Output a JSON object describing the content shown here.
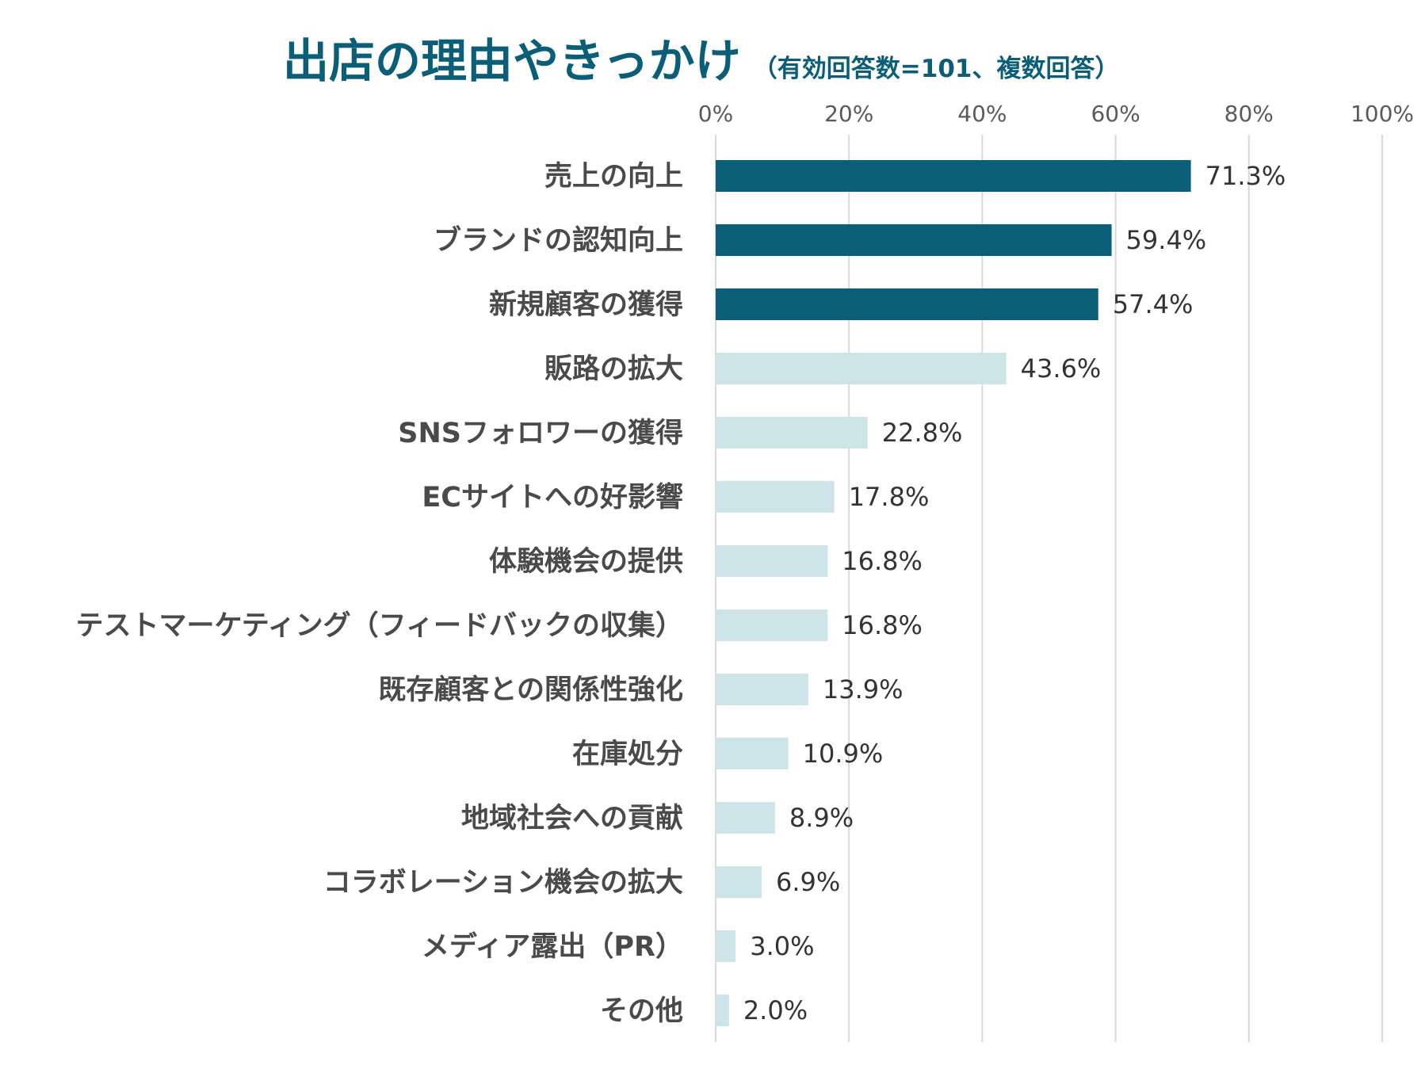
{
  "chart_data": {
    "type": "bar",
    "orientation": "horizontal",
    "title": "出店の理由やきっかけ",
    "subtitle": "（有効回答数=101、複数回答）",
    "categories": [
      "売上の向上",
      "ブランドの認知向上",
      "新規顧客の獲得",
      "販路の拡大",
      "SNSフォロワーの獲得",
      "ECサイトへの好影響",
      "体験機会の提供",
      "テストマーケティング（フィードバックの収集）",
      "既存顧客との関係性強化",
      "在庫処分",
      "地域社会への貢献",
      "コラボレーション機会の拡大",
      "メディア露出（PR）",
      "その他"
    ],
    "values": [
      71.3,
      59.4,
      57.4,
      43.6,
      22.8,
      17.8,
      16.8,
      16.8,
      13.9,
      10.9,
      8.9,
      6.9,
      3.0,
      2.0
    ],
    "value_labels": [
      "71.3%",
      "59.4%",
      "57.4%",
      "43.6%",
      "22.8%",
      "17.8%",
      "16.8%",
      "16.8%",
      "13.9%",
      "10.9%",
      "8.9%",
      "6.9%",
      "3.0%",
      "2.0%"
    ],
    "highlight_top_n": 3,
    "xlim": [
      0,
      100
    ],
    "xticks": [
      0,
      20,
      40,
      60,
      80,
      100
    ],
    "xtick_labels": [
      "0%",
      "20%",
      "40%",
      "60%",
      "80%",
      "100%"
    ],
    "xlabel": "",
    "ylabel": "",
    "grid": true,
    "axis_position": "top",
    "legend": "none"
  },
  "colors": {
    "title": "#0b5e78",
    "highlight_bar": "#0b5e78",
    "normal_bar": "#cde4e8",
    "gridline": "#d9d9d9",
    "category_text": "#4a4a4a",
    "value_text": "#333333",
    "tick_text": "#5a5a5a"
  }
}
